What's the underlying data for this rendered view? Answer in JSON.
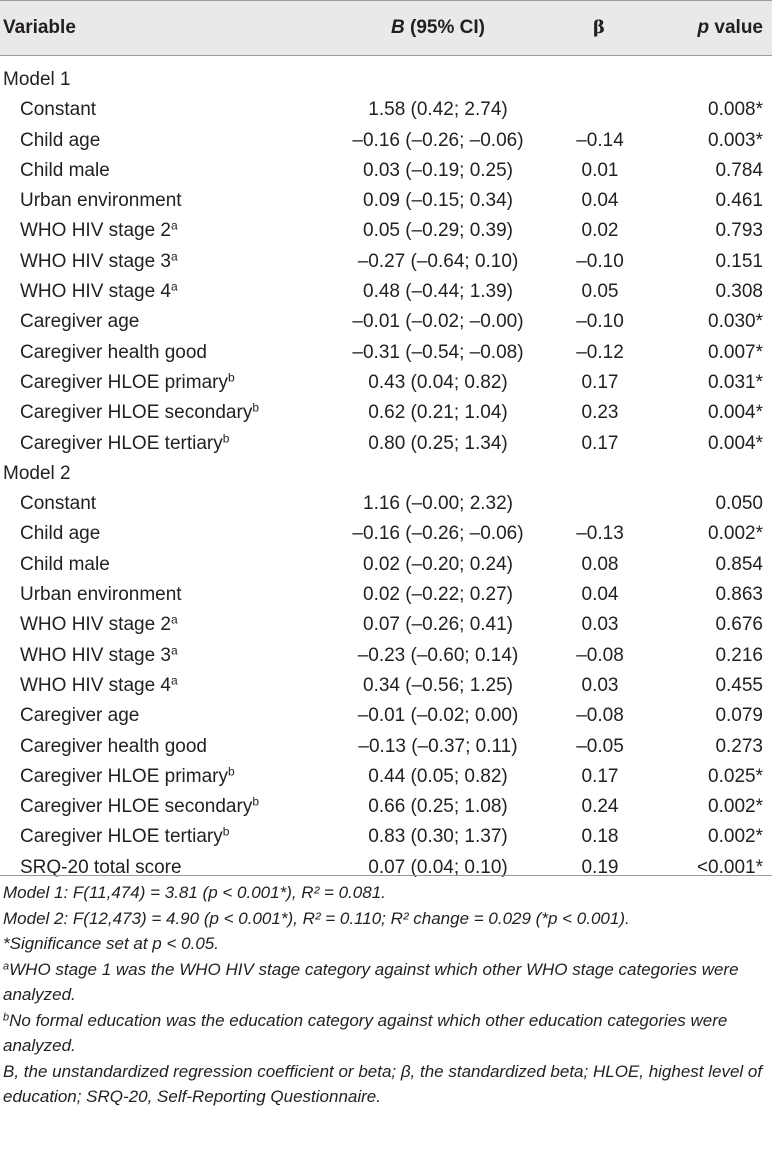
{
  "header": {
    "variable": "Variable",
    "b_label": "B",
    "b_suffix": " (95% CI)",
    "beta": "β",
    "p_label": "p",
    "p_suffix": " value"
  },
  "models": [
    {
      "label": "Model 1",
      "rows": [
        {
          "var": "Constant",
          "sup": "",
          "b": "1.58 (0.42; 2.74)",
          "beta": "",
          "p": "0.008*"
        },
        {
          "var": "Child age",
          "sup": "",
          "b": "–0.16 (–0.26; –0.06)",
          "beta": "–0.14",
          "p": "0.003*"
        },
        {
          "var": "Child male",
          "sup": "",
          "b": "0.03 (–0.19; 0.25)",
          "beta": "0.01",
          "p": "0.784"
        },
        {
          "var": "Urban environment",
          "sup": "",
          "b": "0.09 (–0.15; 0.34)",
          "beta": "0.04",
          "p": "0.461"
        },
        {
          "var": "WHO HIV stage 2",
          "sup": "a",
          "b": "0.05 (–0.29; 0.39)",
          "beta": "0.02",
          "p": "0.793"
        },
        {
          "var": "WHO HIV stage 3",
          "sup": "a",
          "b": "–0.27 (–0.64; 0.10)",
          "beta": "–0.10",
          "p": "0.151"
        },
        {
          "var": "WHO HIV stage 4",
          "sup": "a",
          "b": "0.48 (–0.44; 1.39)",
          "beta": "0.05",
          "p": "0.308"
        },
        {
          "var": "Caregiver age",
          "sup": "",
          "b": "–0.01 (–0.02; –0.00)",
          "beta": "–0.10",
          "p": "0.030*"
        },
        {
          "var": "Caregiver health good",
          "sup": "",
          "b": "–0.31 (–0.54; –0.08)",
          "beta": "–0.12",
          "p": "0.007*"
        },
        {
          "var": "Caregiver HLOE primary",
          "sup": "b",
          "b": "0.43 (0.04; 0.82)",
          "beta": "0.17",
          "p": "0.031*"
        },
        {
          "var": "Caregiver HLOE secondary",
          "sup": "b",
          "b": "0.62 (0.21; 1.04)",
          "beta": "0.23",
          "p": "0.004*"
        },
        {
          "var": "Caregiver HLOE tertiary",
          "sup": "b",
          "b": "0.80 (0.25; 1.34)",
          "beta": "0.17",
          "p": "0.004*"
        }
      ]
    },
    {
      "label": "Model 2",
      "rows": [
        {
          "var": "Constant",
          "sup": "",
          "b": "1.16 (–0.00; 2.32)",
          "beta": "",
          "p": "0.050"
        },
        {
          "var": "Child age",
          "sup": "",
          "b": "–0.16 (–0.26; –0.06)",
          "beta": "–0.13",
          "p": "0.002*"
        },
        {
          "var": "Child male",
          "sup": "",
          "b": "0.02 (–0.20; 0.24)",
          "beta": "0.08",
          "p": "0.854"
        },
        {
          "var": "Urban environment",
          "sup": "",
          "b": "0.02 (–0.22; 0.27)",
          "beta": "0.04",
          "p": "0.863"
        },
        {
          "var": "WHO HIV stage 2",
          "sup": "a",
          "b": "0.07 (–0.26; 0.41)",
          "beta": "0.03",
          "p": "0.676"
        },
        {
          "var": "WHO HIV stage 3",
          "sup": "a",
          "b": "–0.23 (–0.60; 0.14)",
          "beta": "–0.08",
          "p": "0.216"
        },
        {
          "var": "WHO HIV stage 4",
          "sup": "a",
          "b": "0.34 (–0.56; 1.25)",
          "beta": "0.03",
          "p": "0.455"
        },
        {
          "var": "Caregiver age",
          "sup": "",
          "b": "–0.01 (–0.02; 0.00)",
          "beta": "–0.08",
          "p": "0.079"
        },
        {
          "var": "Caregiver health good",
          "sup": "",
          "b": "–0.13 (–0.37; 0.11)",
          "beta": "–0.05",
          "p": "0.273"
        },
        {
          "var": "Caregiver HLOE primary",
          "sup": "b",
          "b": "0.44 (0.05; 0.82)",
          "beta": "0.17",
          "p": "0.025*"
        },
        {
          "var": "Caregiver HLOE secondary",
          "sup": "b",
          "b": "0.66 (0.25; 1.08)",
          "beta": "0.24",
          "p": "0.002*"
        },
        {
          "var": "Caregiver HLOE tertiary",
          "sup": "b",
          "b": "0.83 (0.30; 1.37)",
          "beta": "0.18",
          "p": "0.002*"
        },
        {
          "var": "SRQ-20 total score",
          "sup": "",
          "b": "0.07 (0.04; 0.10)",
          "beta": "0.19",
          "p": "<0.001*"
        }
      ]
    }
  ],
  "notes": {
    "model1": "Model 1: F(11,474) = 3.81 (p < 0.001*), R² = 0.081.",
    "model2": "Model 2: F(12,473) = 4.90 (p < 0.001*), R² = 0.110; R² change = 0.029 (*p < 0.001).",
    "significance": "*Significance set at p < 0.05.",
    "a_mark": "a",
    "a_text": "WHO stage 1 was the WHO HIV stage category against which other WHO stage categories were analyzed.",
    "b_mark": "b",
    "b_text": "No formal education was the education category against which other education categories were analyzed.",
    "abbrev": "B, the unstandardized regression coefficient or beta; β, the standardized beta; HLOE, highest level of education; SRQ-20, Self-Reporting Questionnaire."
  },
  "colors": {
    "header_bg": "#e8e9ea",
    "rule": "#9a9a9a",
    "text": "#231f20"
  }
}
